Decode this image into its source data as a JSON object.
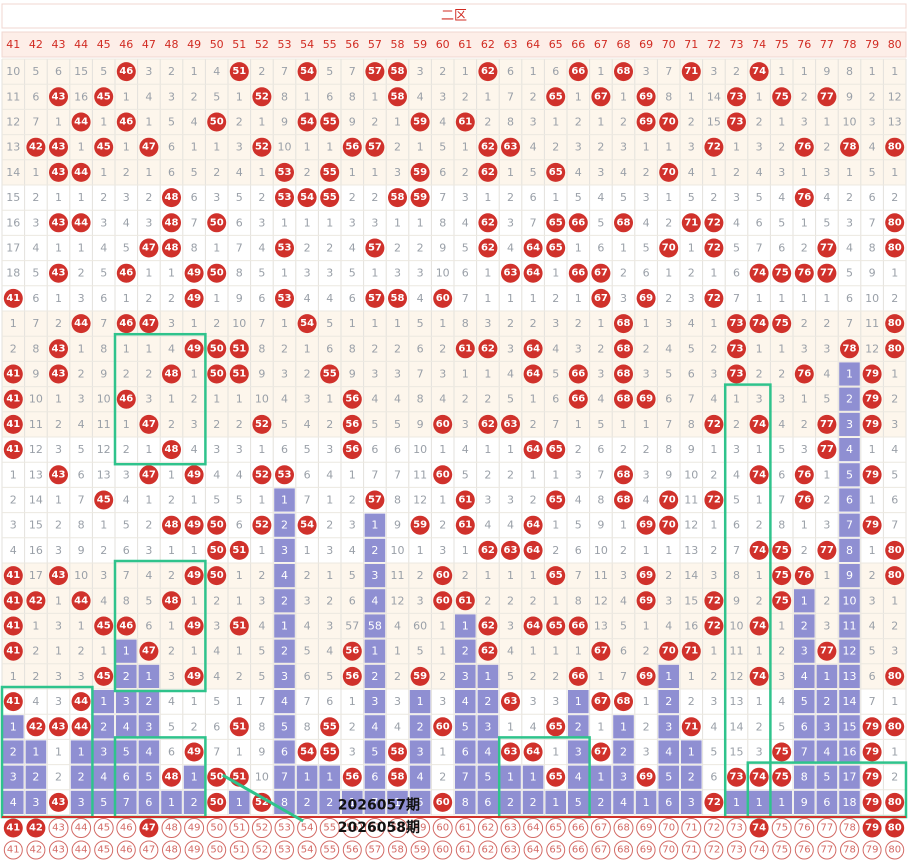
{
  "chart_data": {
    "type": "table",
    "title": "二区",
    "columns": [
      "41",
      "42",
      "43",
      "44",
      "45",
      "46",
      "47",
      "48",
      "49",
      "50",
      "51",
      "52",
      "53",
      "54",
      "55",
      "56",
      "57",
      "58",
      "59",
      "60",
      "61",
      "62",
      "63",
      "64",
      "65",
      "66",
      "67",
      "68",
      "69",
      "70",
      "71",
      "72",
      "73",
      "74",
      "75",
      "76",
      "77",
      "78",
      "79",
      "80"
    ],
    "rows": [
      [
        "10",
        "5",
        "6",
        "15",
        "5",
        "46",
        "3",
        "2",
        "1",
        "4",
        "51",
        "2",
        "7",
        "54",
        "5",
        "7",
        "57",
        "58",
        "3",
        "2",
        "1",
        "62",
        "6",
        "1",
        "6",
        "66",
        "1",
        "68",
        "3",
        "7",
        "71",
        "3",
        "2",
        "74",
        "1",
        "1",
        "9",
        "8",
        "1",
        "1"
      ],
      [
        "11",
        "6",
        "43",
        "16",
        "45",
        "1",
        "4",
        "3",
        "2",
        "5",
        "1",
        "52",
        "8",
        "1",
        "6",
        "8",
        "1",
        "58",
        "4",
        "3",
        "2",
        "1",
        "7",
        "2",
        "65",
        "1",
        "67",
        "1",
        "69",
        "8",
        "1",
        "14",
        "73",
        "1",
        "75",
        "2",
        "77",
        "9",
        "2",
        "12"
      ],
      [
        "12",
        "7",
        "1",
        "44",
        "1",
        "46",
        "1",
        "5",
        "4",
        "50",
        "2",
        "1",
        "9",
        "54",
        "55",
        "9",
        "2",
        "1",
        "59",
        "4",
        "61",
        "2",
        "8",
        "3",
        "1",
        "2",
        "1",
        "2",
        "69",
        "70",
        "2",
        "15",
        "73",
        "2",
        "1",
        "3",
        "1",
        "10",
        "3",
        "13"
      ],
      [
        "13",
        "42",
        "43",
        "1",
        "45",
        "1",
        "47",
        "6",
        "1",
        "1",
        "3",
        "52",
        "10",
        "1",
        "1",
        "56",
        "57",
        "2",
        "1",
        "5",
        "1",
        "62",
        "63",
        "4",
        "2",
        "3",
        "2",
        "3",
        "1",
        "1",
        "3",
        "72",
        "1",
        "3",
        "2",
        "76",
        "2",
        "78",
        "4",
        "80"
      ],
      [
        "14",
        "1",
        "43",
        "44",
        "1",
        "2",
        "1",
        "6",
        "5",
        "2",
        "4",
        "1",
        "53",
        "2",
        "55",
        "1",
        "1",
        "3",
        "59",
        "6",
        "2",
        "62",
        "1",
        "5",
        "65",
        "4",
        "3",
        "4",
        "2",
        "70",
        "4",
        "1",
        "2",
        "4",
        "3",
        "1",
        "3",
        "1",
        "5",
        "1"
      ],
      [
        "15",
        "2",
        "1",
        "1",
        "2",
        "3",
        "2",
        "48",
        "6",
        "3",
        "5",
        "2",
        "53",
        "54",
        "55",
        "2",
        "2",
        "58",
        "59",
        "7",
        "3",
        "1",
        "2",
        "6",
        "1",
        "5",
        "4",
        "5",
        "3",
        "1",
        "5",
        "2",
        "3",
        "5",
        "4",
        "76",
        "4",
        "2",
        "6",
        "2"
      ],
      [
        "16",
        "3",
        "43",
        "44",
        "3",
        "4",
        "3",
        "48",
        "7",
        "50",
        "6",
        "3",
        "1",
        "1",
        "1",
        "3",
        "3",
        "1",
        "1",
        "8",
        "4",
        "62",
        "3",
        "7",
        "65",
        "66",
        "5",
        "68",
        "4",
        "2",
        "71",
        "72",
        "4",
        "6",
        "5",
        "1",
        "5",
        "3",
        "7",
        "80"
      ],
      [
        "17",
        "4",
        "1",
        "1",
        "4",
        "5",
        "47",
        "48",
        "8",
        "1",
        "7",
        "4",
        "53",
        "2",
        "2",
        "4",
        "57",
        "2",
        "2",
        "9",
        "5",
        "62",
        "4",
        "64",
        "65",
        "1",
        "6",
        "1",
        "5",
        "70",
        "1",
        "72",
        "5",
        "7",
        "6",
        "2",
        "77",
        "4",
        "8",
        "80"
      ],
      [
        "18",
        "5",
        "43",
        "2",
        "5",
        "46",
        "1",
        "1",
        "49",
        "50",
        "8",
        "5",
        "1",
        "3",
        "3",
        "5",
        "1",
        "3",
        "3",
        "10",
        "6",
        "1",
        "63",
        "64",
        "1",
        "66",
        "67",
        "2",
        "6",
        "1",
        "2",
        "1",
        "6",
        "74",
        "75",
        "76",
        "77",
        "5",
        "9",
        "1"
      ],
      [
        "41",
        "6",
        "1",
        "3",
        "6",
        "1",
        "2",
        "2",
        "49",
        "1",
        "9",
        "6",
        "53",
        "4",
        "4",
        "6",
        "57",
        "58",
        "4",
        "60",
        "7",
        "1",
        "1",
        "1",
        "2",
        "1",
        "67",
        "3",
        "69",
        "2",
        "3",
        "72",
        "7",
        "1",
        "1",
        "1",
        "1",
        "6",
        "10",
        "2"
      ],
      [
        "1",
        "7",
        "2",
        "44",
        "7",
        "46",
        "47",
        "3",
        "1",
        "2",
        "10",
        "7",
        "1",
        "54",
        "5",
        "1",
        "1",
        "1",
        "5",
        "1",
        "8",
        "3",
        "2",
        "2",
        "3",
        "2",
        "1",
        "68",
        "1",
        "3",
        "4",
        "1",
        "73",
        "74",
        "75",
        "2",
        "2",
        "7",
        "11",
        "80"
      ],
      [
        "2",
        "8",
        "43",
        "1",
        "8",
        "1",
        "1",
        "4",
        "49",
        "50",
        "51",
        "8",
        "2",
        "1",
        "6",
        "8",
        "2",
        "2",
        "6",
        "2",
        "61",
        "62",
        "3",
        "64",
        "4",
        "3",
        "2",
        "68",
        "2",
        "4",
        "5",
        "2",
        "73",
        "1",
        "1",
        "3",
        "3",
        "78",
        "12",
        "80"
      ],
      [
        "41",
        "9",
        "43",
        "2",
        "9",
        "2",
        "2",
        "48",
        "1",
        "50",
        "51",
        "9",
        "3",
        "2",
        "55",
        "9",
        "3",
        "3",
        "7",
        "3",
        "1",
        "1",
        "4",
        "64",
        "5",
        "66",
        "3",
        "68",
        "3",
        "5",
        "6",
        "3",
        "73",
        "2",
        "2",
        "76",
        "4",
        "1",
        "79",
        "1"
      ],
      [
        "41",
        "10",
        "1",
        "3",
        "10",
        "46",
        "3",
        "1",
        "2",
        "1",
        "1",
        "10",
        "4",
        "3",
        "1",
        "56",
        "4",
        "4",
        "8",
        "4",
        "2",
        "2",
        "5",
        "1",
        "6",
        "66",
        "4",
        "68",
        "69",
        "6",
        "7",
        "4",
        "1",
        "3",
        "3",
        "1",
        "5",
        "2",
        "79",
        "2"
      ],
      [
        "41",
        "11",
        "2",
        "4",
        "11",
        "1",
        "47",
        "2",
        "3",
        "2",
        "2",
        "52",
        "5",
        "4",
        "2",
        "56",
        "5",
        "5",
        "9",
        "60",
        "3",
        "62",
        "63",
        "2",
        "7",
        "1",
        "5",
        "1",
        "1",
        "7",
        "8",
        "72",
        "2",
        "74",
        "4",
        "2",
        "77",
        "3",
        "79",
        "3"
      ],
      [
        "41",
        "12",
        "3",
        "5",
        "12",
        "2",
        "1",
        "48",
        "4",
        "3",
        "3",
        "1",
        "6",
        "5",
        "3",
        "56",
        "6",
        "6",
        "10",
        "1",
        "4",
        "1",
        "1",
        "64",
        "65",
        "2",
        "6",
        "2",
        "2",
        "8",
        "9",
        "1",
        "3",
        "1",
        "5",
        "3",
        "77",
        "4",
        "1",
        "4"
      ],
      [
        "1",
        "13",
        "43",
        "6",
        "13",
        "3",
        "47",
        "1",
        "49",
        "4",
        "4",
        "52",
        "53",
        "6",
        "4",
        "1",
        "7",
        "7",
        "11",
        "60",
        "5",
        "2",
        "2",
        "1",
        "1",
        "3",
        "7",
        "68",
        "3",
        "9",
        "10",
        "2",
        "4",
        "74",
        "6",
        "76",
        "1",
        "5",
        "79",
        "5"
      ],
      [
        "2",
        "14",
        "1",
        "7",
        "45",
        "4",
        "1",
        "2",
        "1",
        "5",
        "5",
        "1",
        "1",
        "7",
        "1",
        "2",
        "57",
        "8",
        "12",
        "1",
        "61",
        "3",
        "3",
        "2",
        "65",
        "4",
        "8",
        "68",
        "4",
        "70",
        "11",
        "72",
        "5",
        "1",
        "7",
        "76",
        "2",
        "6",
        "1",
        "6"
      ],
      [
        "3",
        "15",
        "2",
        "8",
        "1",
        "5",
        "2",
        "48",
        "49",
        "50",
        "6",
        "52",
        "2",
        "54",
        "2",
        "3",
        "1",
        "9",
        "59",
        "2",
        "61",
        "4",
        "4",
        "64",
        "1",
        "5",
        "9",
        "1",
        "69",
        "70",
        "12",
        "1",
        "6",
        "2",
        "8",
        "1",
        "3",
        "7",
        "79",
        "7"
      ],
      [
        "4",
        "16",
        "3",
        "9",
        "2",
        "6",
        "3",
        "1",
        "1",
        "50",
        "51",
        "1",
        "3",
        "1",
        "3",
        "4",
        "2",
        "10",
        "1",
        "3",
        "1",
        "62",
        "63",
        "64",
        "2",
        "6",
        "10",
        "2",
        "1",
        "1",
        "13",
        "2",
        "7",
        "74",
        "75",
        "2",
        "77",
        "8",
        "1",
        "80"
      ],
      [
        "41",
        "17",
        "43",
        "10",
        "3",
        "7",
        "4",
        "2",
        "49",
        "50",
        "1",
        "2",
        "4",
        "2",
        "1",
        "5",
        "3",
        "11",
        "2",
        "60",
        "2",
        "1",
        "1",
        "1",
        "65",
        "7",
        "11",
        "3",
        "69",
        "2",
        "14",
        "3",
        "8",
        "1",
        "75",
        "76",
        "1",
        "9",
        "2",
        "80"
      ],
      [
        "41",
        "42",
        "1",
        "44",
        "4",
        "8",
        "5",
        "48",
        "1",
        "2",
        "1",
        "3",
        "2",
        "3",
        "2",
        "6",
        "4",
        "12",
        "3",
        "60",
        "61",
        "2",
        "2",
        "2",
        "1",
        "8",
        "12",
        "4",
        "69",
        "3",
        "15",
        "72",
        "9",
        "2",
        "75",
        "1",
        "2",
        "10",
        "3",
        "1"
      ],
      [
        "41",
        "1",
        "3",
        "1",
        "45",
        "46",
        "6",
        "1",
        "49",
        "3",
        "51",
        "4",
        "1",
        "4",
        "3",
        "57",
        "58",
        "4",
        "60",
        "1",
        "1",
        "62",
        "3",
        "64",
        "65",
        "66",
        "13",
        "5",
        "1",
        "4",
        "16",
        "72",
        "10",
        "74",
        "1",
        "2",
        "3",
        "11",
        "4",
        "2"
      ],
      [
        "41",
        "2",
        "1",
        "2",
        "1",
        "1",
        "47",
        "2",
        "1",
        "4",
        "1",
        "5",
        "2",
        "5",
        "4",
        "56",
        "1",
        "1",
        "5",
        "1",
        "2",
        "62",
        "4",
        "1",
        "1",
        "1",
        "67",
        "6",
        "2",
        "70",
        "71",
        "1",
        "11",
        "1",
        "2",
        "3",
        "77",
        "12",
        "5",
        "3"
      ],
      [
        "1",
        "2",
        "3",
        "3",
        "45",
        "2",
        "1",
        "3",
        "49",
        "4",
        "2",
        "5",
        "3",
        "6",
        "5",
        "56",
        "2",
        "2",
        "59",
        "2",
        "3",
        "1",
        "5",
        "2",
        "2",
        "66",
        "1",
        "7",
        "69",
        "1",
        "1",
        "2",
        "12",
        "74",
        "3",
        "4",
        "1",
        "13",
        "6",
        "80"
      ],
      [
        "41",
        "4",
        "3",
        "44",
        "1",
        "3",
        "2",
        "4",
        "1",
        "5",
        "1",
        "7",
        "4",
        "7",
        "6",
        "1",
        "3",
        "3",
        "1",
        "3",
        "4",
        "2",
        "63",
        "3",
        "3",
        "1",
        "67",
        "68",
        "1",
        "2",
        "2",
        "3",
        "13",
        "1",
        "4",
        "5",
        "2",
        "14",
        "7",
        "1"
      ],
      [
        "1",
        "42",
        "43",
        "44",
        "2",
        "4",
        "3",
        "5",
        "2",
        "6",
        "51",
        "8",
        "5",
        "8",
        "55",
        "2",
        "4",
        "4",
        "2",
        "60",
        "5",
        "3",
        "1",
        "4",
        "65",
        "2",
        "1",
        "1",
        "2",
        "3",
        "71",
        "4",
        "14",
        "2",
        "5",
        "6",
        "3",
        "15",
        "79",
        "80"
      ],
      [
        "2",
        "1",
        "1",
        "1",
        "3",
        "5",
        "4",
        "6",
        "49",
        "7",
        "1",
        "9",
        "6",
        "54",
        "55",
        "3",
        "5",
        "58",
        "3",
        "1",
        "6",
        "4",
        "63",
        "64",
        "1",
        "3",
        "67",
        "2",
        "3",
        "4",
        "1",
        "5",
        "15",
        "3",
        "75",
        "7",
        "4",
        "16",
        "79",
        "1"
      ],
      [
        "3",
        "2",
        "2",
        "2",
        "4",
        "6",
        "5",
        "48",
        "1",
        "50",
        "51",
        "10",
        "7",
        "1",
        "1",
        "56",
        "6",
        "58",
        "4",
        "2",
        "7",
        "5",
        "1",
        "1",
        "65",
        "4",
        "1",
        "3",
        "69",
        "5",
        "2",
        "6",
        "73",
        "74",
        "75",
        "8",
        "5",
        "17",
        "79",
        "2"
      ],
      [
        "4",
        "3",
        "43",
        "3",
        "5",
        "7",
        "6",
        "1",
        "2",
        "50",
        "1",
        "52",
        "8",
        "2",
        "2",
        "1",
        "7",
        "1",
        "5",
        "60",
        "8",
        "6",
        "2",
        "2",
        "1",
        "5",
        "2",
        "4",
        "1",
        "6",
        "3",
        "72",
        "1",
        "1",
        "1",
        "9",
        "6",
        "18",
        "79",
        "80"
      ]
    ],
    "current_numbers": [
      "41",
      "42",
      "47",
      "74",
      "79",
      "80"
    ],
    "annotations": [
      "2026057期",
      "2026058期"
    ],
    "colors": {
      "header_bg": "#fdeee8",
      "header_text": "#d12b22",
      "row_bg_a": "#fdf6ec",
      "row_bg_b": "#ffffff",
      "cell_text": "#9aa0a8",
      "ball": "#d0312b",
      "ball_text": "#ffffff",
      "bar": "#8f8fd2",
      "bar_text": "#ffffff",
      "box": "#2fc38c",
      "footer_circle": "#d36b66"
    }
  }
}
